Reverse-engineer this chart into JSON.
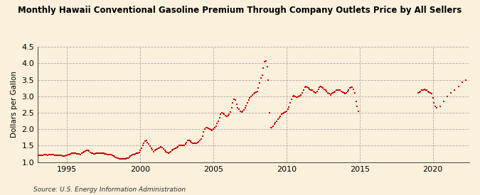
{
  "title": "Monthly Hawaii Conventional Gasoline Premium Through Company Outlets Price by All Sellers",
  "ylabel": "Dollars per Gallon",
  "source": "Source: U.S. Energy Information Administration",
  "bg_color": "#FAF0DC",
  "plot_bg_color": "#FAF0DC",
  "marker_color": "#CC0000",
  "xlim": [
    1993.0,
    2022.5
  ],
  "ylim": [
    1.0,
    4.5
  ],
  "xticks": [
    1995,
    2000,
    2005,
    2010,
    2015,
    2020
  ],
  "yticks": [
    1.0,
    1.5,
    2.0,
    2.5,
    3.0,
    3.5,
    4.0,
    4.5
  ],
  "data": {
    "dates": [
      1993.0,
      1993.08,
      1993.17,
      1993.25,
      1993.33,
      1993.42,
      1993.5,
      1993.58,
      1993.67,
      1993.75,
      1993.83,
      1993.92,
      1994.0,
      1994.08,
      1994.17,
      1994.25,
      1994.33,
      1994.42,
      1994.5,
      1994.58,
      1994.67,
      1994.75,
      1994.83,
      1994.92,
      1995.0,
      1995.08,
      1995.17,
      1995.25,
      1995.33,
      1995.42,
      1995.5,
      1995.58,
      1995.67,
      1995.75,
      1995.83,
      1995.92,
      1996.0,
      1996.08,
      1996.17,
      1996.25,
      1996.33,
      1996.42,
      1996.5,
      1996.58,
      1996.67,
      1996.75,
      1996.83,
      1996.92,
      1997.0,
      1997.08,
      1997.17,
      1997.25,
      1997.33,
      1997.42,
      1997.5,
      1997.58,
      1997.67,
      1997.75,
      1997.83,
      1997.92,
      1998.0,
      1998.08,
      1998.17,
      1998.25,
      1998.33,
      1998.42,
      1998.5,
      1998.58,
      1998.67,
      1998.75,
      1998.83,
      1998.92,
      1999.0,
      1999.08,
      1999.17,
      1999.25,
      1999.33,
      1999.42,
      1999.5,
      1999.58,
      1999.67,
      1999.75,
      1999.83,
      1999.92,
      2000.0,
      2000.08,
      2000.17,
      2000.25,
      2000.33,
      2000.42,
      2000.5,
      2000.58,
      2000.67,
      2000.75,
      2000.83,
      2000.92,
      2001.0,
      2001.08,
      2001.17,
      2001.25,
      2001.33,
      2001.42,
      2001.5,
      2001.58,
      2001.67,
      2001.75,
      2001.83,
      2001.92,
      2002.0,
      2002.08,
      2002.17,
      2002.25,
      2002.33,
      2002.42,
      2002.5,
      2002.58,
      2002.67,
      2002.75,
      2002.83,
      2002.92,
      2003.0,
      2003.08,
      2003.17,
      2003.25,
      2003.33,
      2003.42,
      2003.5,
      2003.58,
      2003.67,
      2003.75,
      2003.83,
      2003.92,
      2004.0,
      2004.08,
      2004.17,
      2004.25,
      2004.33,
      2004.42,
      2004.5,
      2004.58,
      2004.67,
      2004.75,
      2004.83,
      2004.92,
      2005.0,
      2005.08,
      2005.17,
      2005.25,
      2005.33,
      2005.42,
      2005.5,
      2005.58,
      2005.67,
      2005.75,
      2005.83,
      2005.92,
      2006.0,
      2006.08,
      2006.17,
      2006.25,
      2006.33,
      2006.42,
      2006.5,
      2006.58,
      2006.67,
      2006.75,
      2006.83,
      2006.92,
      2007.0,
      2007.08,
      2007.17,
      2007.25,
      2007.33,
      2007.42,
      2007.5,
      2007.58,
      2007.67,
      2007.75,
      2007.83,
      2007.92,
      2008.0,
      2008.08,
      2008.17,
      2008.25,
      2008.33,
      2008.42,
      2008.5,
      2008.58,
      2008.67,
      2008.75,
      2008.83,
      2008.92,
      2009.0,
      2009.08,
      2009.17,
      2009.25,
      2009.33,
      2009.42,
      2009.5,
      2009.58,
      2009.67,
      2009.75,
      2009.83,
      2009.92,
      2010.0,
      2010.08,
      2010.17,
      2010.25,
      2010.33,
      2010.42,
      2010.5,
      2010.58,
      2010.67,
      2010.75,
      2010.83,
      2010.92,
      2011.0,
      2011.08,
      2011.17,
      2011.25,
      2011.33,
      2011.42,
      2011.5,
      2011.58,
      2011.67,
      2011.75,
      2011.83,
      2011.92,
      2012.0,
      2012.08,
      2012.17,
      2012.25,
      2012.33,
      2012.42,
      2012.5,
      2012.58,
      2012.67,
      2012.75,
      2012.83,
      2012.92,
      2013.0,
      2013.08,
      2013.17,
      2013.25,
      2013.33,
      2013.42,
      2013.5,
      2013.58,
      2013.67,
      2013.75,
      2013.83,
      2013.92,
      2014.0,
      2014.08,
      2014.17,
      2014.25,
      2014.33,
      2014.42,
      2014.5,
      2014.58,
      2014.67,
      2014.75,
      2014.83,
      2014.92,
      2019.0,
      2019.08,
      2019.17,
      2019.25,
      2019.33,
      2019.42,
      2019.5,
      2019.58,
      2019.67,
      2019.75,
      2019.83,
      2019.92,
      2020.0,
      2020.08,
      2020.17,
      2020.25,
      2020.5,
      2020.75,
      2021.0,
      2021.25,
      2021.5,
      2021.75,
      2022.0,
      2022.25
    ],
    "prices": [
      1.22,
      1.21,
      1.2,
      1.2,
      1.21,
      1.22,
      1.22,
      1.22,
      1.21,
      1.22,
      1.23,
      1.23,
      1.23,
      1.22,
      1.21,
      1.2,
      1.2,
      1.2,
      1.2,
      1.2,
      1.19,
      1.19,
      1.19,
      1.2,
      1.21,
      1.22,
      1.23,
      1.25,
      1.27,
      1.28,
      1.28,
      1.27,
      1.26,
      1.26,
      1.25,
      1.24,
      1.28,
      1.3,
      1.32,
      1.33,
      1.35,
      1.35,
      1.33,
      1.3,
      1.28,
      1.27,
      1.26,
      1.25,
      1.27,
      1.28,
      1.28,
      1.28,
      1.28,
      1.28,
      1.27,
      1.26,
      1.25,
      1.24,
      1.23,
      1.22,
      1.22,
      1.2,
      1.18,
      1.16,
      1.14,
      1.13,
      1.12,
      1.11,
      1.1,
      1.1,
      1.1,
      1.11,
      1.11,
      1.12,
      1.13,
      1.15,
      1.18,
      1.2,
      1.22,
      1.24,
      1.26,
      1.27,
      1.28,
      1.3,
      1.35,
      1.42,
      1.5,
      1.58,
      1.63,
      1.65,
      1.6,
      1.55,
      1.48,
      1.43,
      1.38,
      1.32,
      1.35,
      1.37,
      1.4,
      1.42,
      1.45,
      1.47,
      1.45,
      1.4,
      1.35,
      1.32,
      1.3,
      1.28,
      1.3,
      1.32,
      1.35,
      1.37,
      1.4,
      1.43,
      1.45,
      1.47,
      1.5,
      1.5,
      1.5,
      1.52,
      1.52,
      1.55,
      1.6,
      1.65,
      1.65,
      1.63,
      1.6,
      1.58,
      1.57,
      1.57,
      1.58,
      1.6,
      1.62,
      1.65,
      1.7,
      1.8,
      1.92,
      2.0,
      2.05,
      2.05,
      2.03,
      2.0,
      1.98,
      1.97,
      2.0,
      2.05,
      2.1,
      2.18,
      2.25,
      2.35,
      2.45,
      2.5,
      2.48,
      2.45,
      2.42,
      2.4,
      2.42,
      2.45,
      2.52,
      2.65,
      2.8,
      2.9,
      2.88,
      2.75,
      2.65,
      2.6,
      2.55,
      2.52,
      2.55,
      2.58,
      2.65,
      2.72,
      2.8,
      2.88,
      2.95,
      3.0,
      3.05,
      3.08,
      3.1,
      3.12,
      3.15,
      3.25,
      3.4,
      3.55,
      3.65,
      3.85,
      4.05,
      4.08,
      3.9,
      3.5,
      2.5,
      2.05,
      2.05,
      2.1,
      2.15,
      2.2,
      2.25,
      2.3,
      2.35,
      2.4,
      2.45,
      2.48,
      2.5,
      2.52,
      2.55,
      2.6,
      2.68,
      2.8,
      2.92,
      3.0,
      3.02,
      3.0,
      2.98,
      2.98,
      3.0,
      3.02,
      3.05,
      3.1,
      3.2,
      3.28,
      3.3,
      3.28,
      3.25,
      3.22,
      3.2,
      3.18,
      3.15,
      3.12,
      3.1,
      3.15,
      3.22,
      3.28,
      3.3,
      3.28,
      3.25,
      3.22,
      3.18,
      3.15,
      3.1,
      3.08,
      3.05,
      3.08,
      3.1,
      3.12,
      3.15,
      3.18,
      3.2,
      3.2,
      3.18,
      3.15,
      3.12,
      3.1,
      3.08,
      3.1,
      3.15,
      3.2,
      3.25,
      3.28,
      3.28,
      3.22,
      3.1,
      2.85,
      2.7,
      2.55,
      3.1,
      3.12,
      3.15,
      3.18,
      3.2,
      3.22,
      3.2,
      3.18,
      3.15,
      3.12,
      3.1,
      3.08,
      2.95,
      2.8,
      2.7,
      2.65,
      2.7,
      2.85,
      3.0,
      3.1,
      3.2,
      3.3,
      3.42,
      3.5
    ]
  }
}
